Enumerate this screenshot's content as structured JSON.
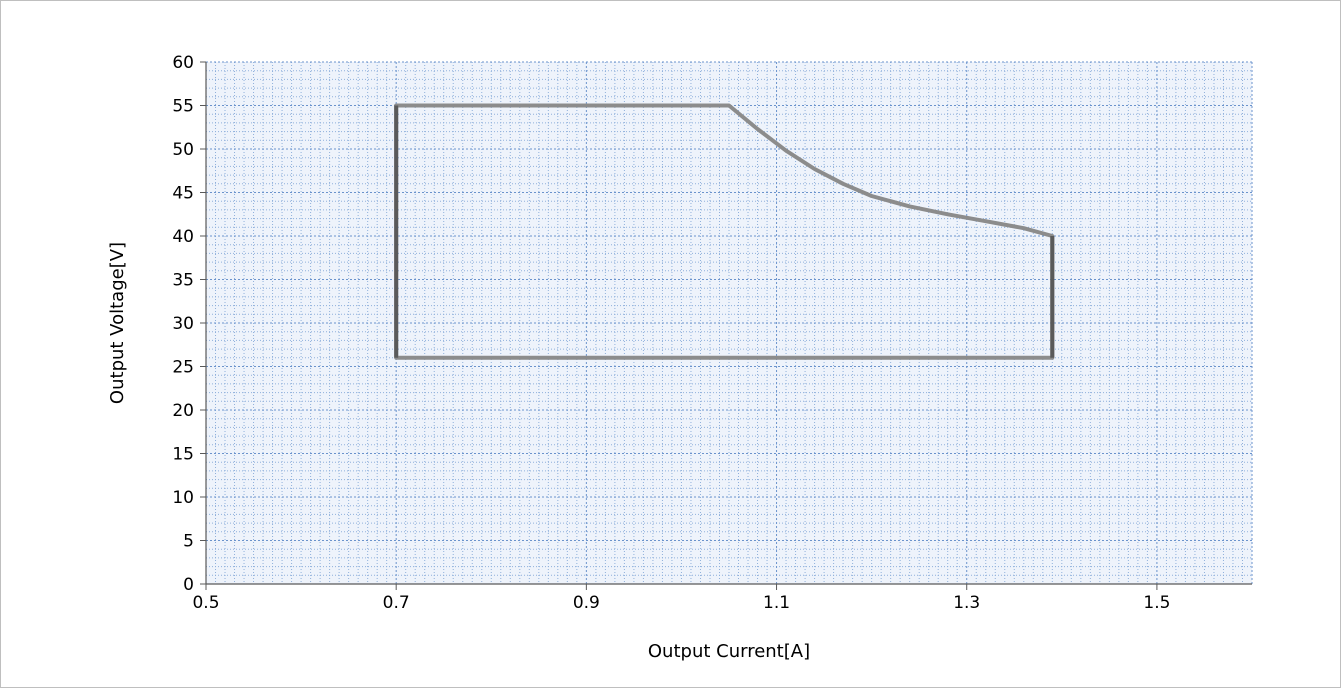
{
  "chart_data": {
    "type": "line",
    "title": "",
    "xlabel": "Output Current[A]",
    "ylabel": "Output Voltage[V]",
    "xlim": [
      0.5,
      1.6
    ],
    "ylim": [
      0,
      60
    ],
    "x_ticks": [
      0.5,
      0.7,
      0.9,
      1.1,
      1.3,
      1.5
    ],
    "x_tick_labels": [
      "0.5",
      "0.7",
      "0.9",
      "1.1",
      "1.3",
      "1.5"
    ],
    "y_ticks": [
      0,
      5,
      10,
      15,
      20,
      25,
      30,
      35,
      40,
      45,
      50,
      55,
      60
    ],
    "y_tick_labels": [
      "0",
      "5",
      "10",
      "15",
      "20",
      "25",
      "30",
      "35",
      "40",
      "45",
      "50",
      "55",
      "60"
    ],
    "grid": true,
    "legend": "none",
    "series": [
      {
        "color": "#8c8c8c",
        "points": [
          [
            0.7,
            26.0
          ],
          [
            0.7,
            55.0
          ],
          [
            1.05,
            55.0
          ],
          [
            1.08,
            52.3
          ],
          [
            1.11,
            49.8
          ],
          [
            1.14,
            47.7
          ],
          [
            1.17,
            46.0
          ],
          [
            1.2,
            44.6
          ],
          [
            1.24,
            43.4
          ],
          [
            1.28,
            42.5
          ],
          [
            1.32,
            41.7
          ],
          [
            1.36,
            40.9
          ],
          [
            1.39,
            40.0
          ],
          [
            1.39,
            26.0
          ],
          [
            0.7,
            26.0
          ]
        ]
      }
    ],
    "dark_segments": [
      {
        "color": "#5a5a5a",
        "points": [
          [
            0.7,
            26.0
          ],
          [
            0.7,
            55.0
          ]
        ]
      },
      {
        "color": "#5a5a5a",
        "points": [
          [
            1.39,
            26.0
          ],
          [
            1.39,
            40.0
          ]
        ]
      }
    ]
  }
}
